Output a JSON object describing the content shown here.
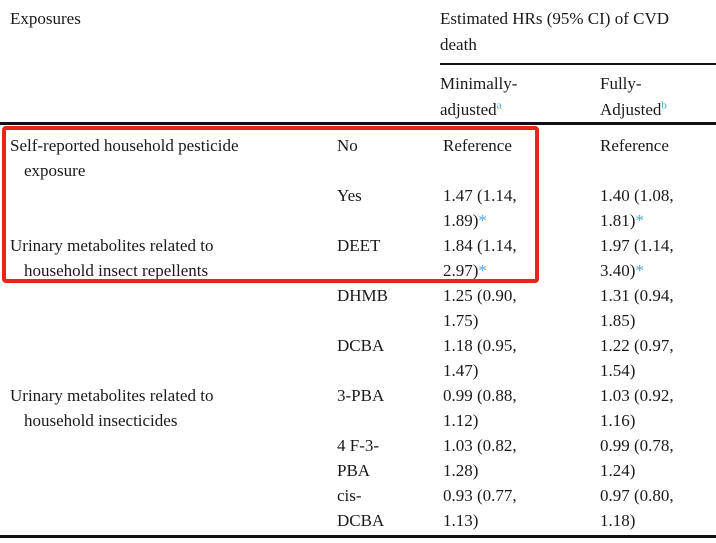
{
  "header": {
    "exposures": "Exposures",
    "hr_group": "Estimated HRs (95% CI) of CVD\ndeath",
    "minimally": {
      "label": "Minimally-\nadjusted",
      "sup": "a"
    },
    "fully": {
      "label": "Fully-\nAdjusted",
      "sup": "b"
    }
  },
  "rows": [
    {
      "exposure": "Self-reported household pesticide\nexposure",
      "sub": "No",
      "min": {
        "value": "Reference",
        "star": ""
      },
      "full": {
        "value": "Reference",
        "star": ""
      }
    },
    {
      "exposure": "",
      "sub": "Yes",
      "min": {
        "value": "1.47 (1.14,\n1.89)",
        "star": "*"
      },
      "full": {
        "value": "1.40 (1.08,\n1.81)",
        "star": "*"
      }
    },
    {
      "exposure": "Urinary metabolites related to\nhousehold insect repellents",
      "sub": "DEET",
      "min": {
        "value": "1.84 (1.14,\n2.97)",
        "star": "*"
      },
      "full": {
        "value": "1.97 (1.14,\n3.40)",
        "star": "*"
      }
    },
    {
      "exposure": "",
      "sub": "DHMB",
      "min": {
        "value": "1.25 (0.90,\n1.75)",
        "star": ""
      },
      "full": {
        "value": "1.31 (0.94,\n1.85)",
        "star": ""
      }
    },
    {
      "exposure": "",
      "sub": "DCBA",
      "min": {
        "value": "1.18 (0.95,\n1.47)",
        "star": ""
      },
      "full": {
        "value": "1.22 (0.97,\n1.54)",
        "star": ""
      }
    },
    {
      "exposure": "Urinary metabolites related to\nhousehold insecticides",
      "sub": "3-PBA",
      "min": {
        "value": "0.99 (0.88,\n1.12)",
        "star": ""
      },
      "full": {
        "value": "1.03 (0.92,\n1.16)",
        "star": ""
      }
    },
    {
      "exposure": "",
      "sub": "4 F-3-\nPBA",
      "min": {
        "value": "1.03 (0.82,\n1.28)",
        "star": ""
      },
      "full": {
        "value": "0.99 (0.78,\n1.24)",
        "star": ""
      }
    },
    {
      "exposure": "",
      "sub": "cis-\nDCBA",
      "min": {
        "value": "0.93 (0.77,\n1.13)",
        "star": ""
      },
      "full": {
        "value": "0.97 (0.80,\n1.18)",
        "star": ""
      }
    }
  ],
  "colors": {
    "highlight_red": "#ea2517",
    "footnote_blue": "#4da3dc",
    "text": "#1a1a1a"
  }
}
